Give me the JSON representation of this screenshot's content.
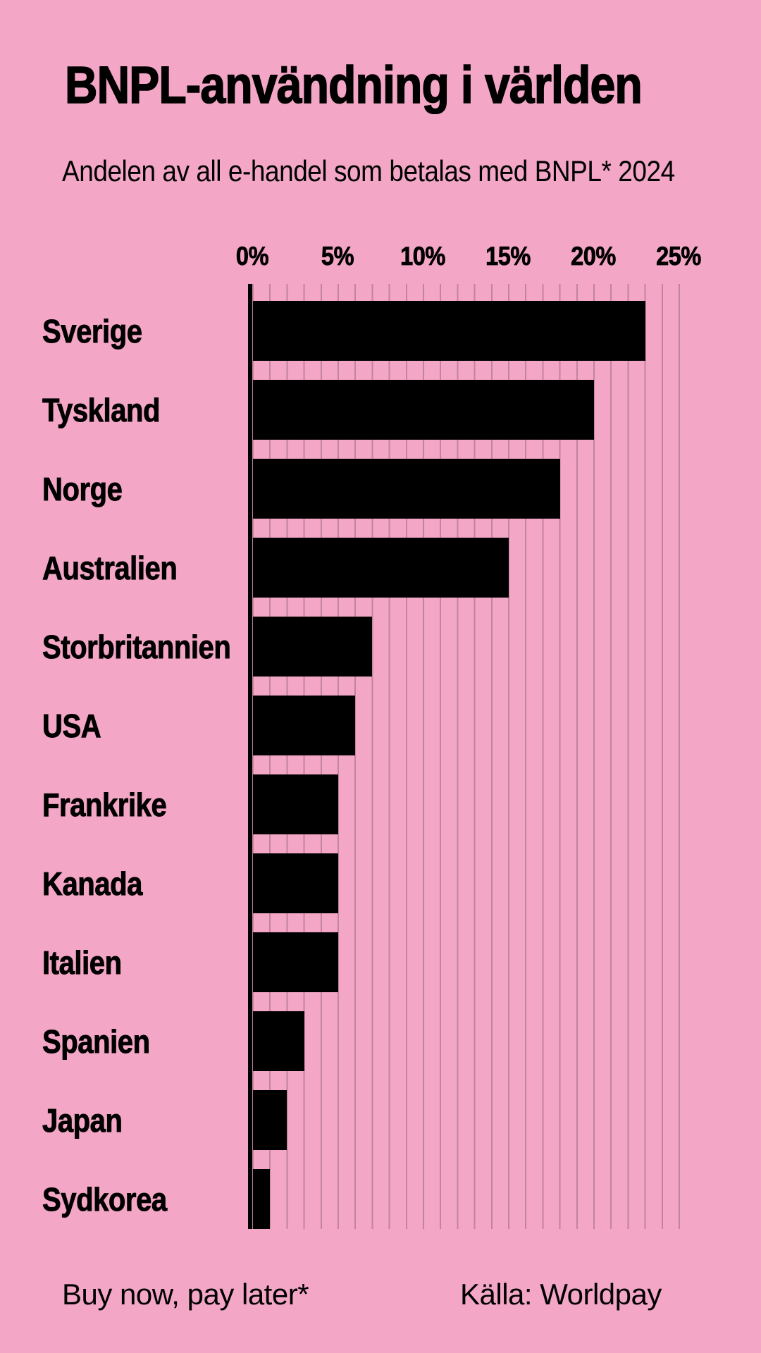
{
  "header": {
    "title": "BNPL-användning i världen",
    "subtitle": "Andelen av all e-handel som betalas med BNPL* 2024"
  },
  "chart_data": {
    "type": "bar",
    "orientation": "horizontal",
    "title": "BNPL-användning i världen",
    "subtitle": "Andelen av all e-handel som betalas med BNPL* 2024",
    "categories": [
      "Sverige",
      "Tyskland",
      "Norge",
      "Australien",
      "Storbritannien",
      "USA",
      "Frankrike",
      "Kanada",
      "Italien",
      "Spanien",
      "Japan",
      "Sydkorea"
    ],
    "values": [
      23,
      20,
      18,
      15,
      7,
      6,
      5,
      5,
      5,
      3,
      2,
      1
    ],
    "unit": "%",
    "x_axis": {
      "min": 0,
      "max": 25,
      "tick_labels": [
        "0%",
        "5%",
        "10%",
        "15%",
        "20%",
        "25%"
      ],
      "tick_values": [
        0,
        5,
        10,
        15,
        20,
        25
      ],
      "minor_gridline_step": 1
    },
    "grid": true,
    "legend": false,
    "colors": {
      "background": "#F3A6C5",
      "bar": "#000000",
      "gridline": "#C2849D",
      "text": "#000000"
    }
  },
  "footer": {
    "note": "Buy now, pay later*",
    "source": "Källa: Worldpay"
  }
}
